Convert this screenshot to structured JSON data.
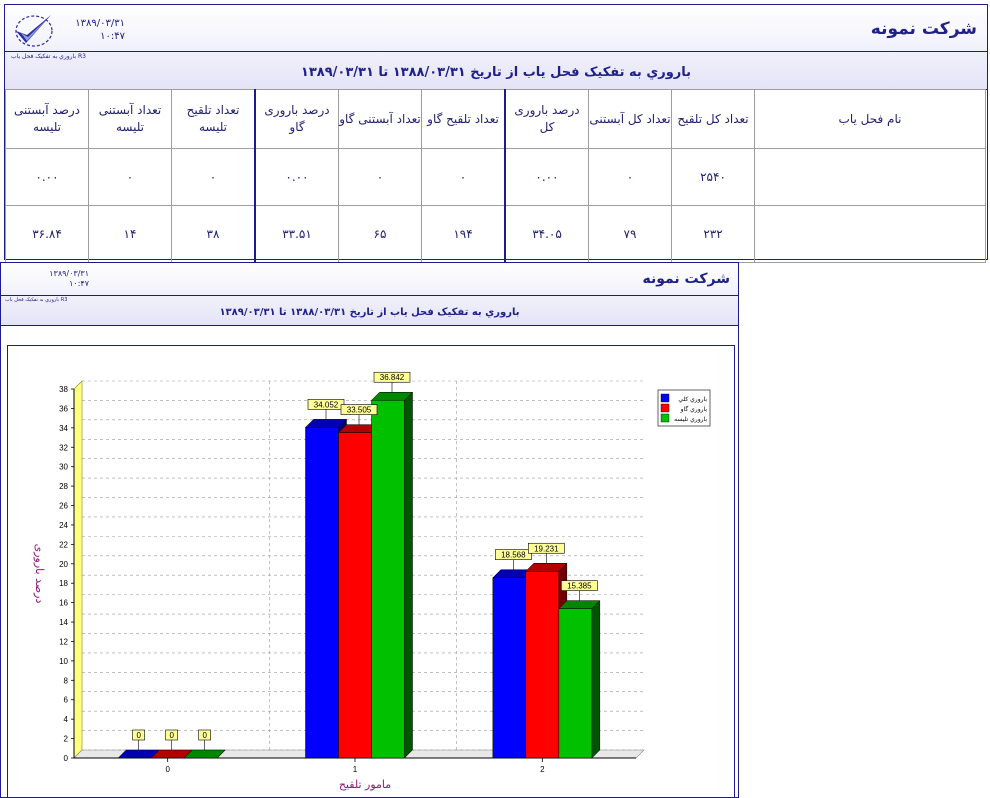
{
  "company": "شرکت نمونه",
  "report_date": "۱۳۸۹/۰۳/۳۱",
  "report_time": "۱۰:۴۷",
  "report_code": "باروري به تفکيک فحل ياب R3",
  "report_title": "باروري به تفکيک فحل ياب از تاريخ ۱۳۸۸/۰۳/۳۱ تا ۱۳۸۹/۰۳/۳۱",
  "table": {
    "columns": [
      "نام فحل یاب",
      "تعداد کل تلقیح",
      "تعداد کل آبستنی",
      "درصد باروری کل",
      "تعداد تلقیح گاو",
      "تعداد آبستنی گاو",
      "درصد باروری گاو",
      "تعداد تلقیح تلیسه",
      "تعداد آبستنی تلیسه",
      "درصد آبستنی تلیسه"
    ],
    "rows": [
      [
        "",
        "۲۵۴۰",
        "۰",
        "۰.۰۰",
        "۰",
        "۰",
        "۰.۰۰",
        "۰",
        "۰",
        "۰.۰۰"
      ],
      [
        "",
        "۲۳۲",
        "۷۹",
        "۳۴.۰۵",
        "۱۹۴",
        "۶۵",
        "۳۳.۵۱",
        "۳۸",
        "۱۴",
        "۳۶.۸۴"
      ]
    ]
  },
  "chart_header": {
    "company": "شرکت نمونه",
    "date": "۱۳۸۹/۰۳/۳۱",
    "time": "۱۰:۴۷",
    "code": "باروري به تفکيک فحل ياب R3",
    "title": "باروري به تفکيک فحل ياب از تاريخ ۱۳۸۸/۰۳/۳۱ تا ۱۳۸۹/۰۳/۳۱"
  },
  "chart_data": {
    "type": "bar",
    "categories": [
      "0",
      "1",
      "2"
    ],
    "series": [
      {
        "name": "باروري کلي",
        "values": [
          0,
          34.052,
          18.568
        ],
        "labels": [
          "0",
          "34.052",
          "18.568"
        ],
        "color": "#0000ff"
      },
      {
        "name": "باروري گاو",
        "values": [
          0,
          33.505,
          19.231
        ],
        "labels": [
          "0",
          "33.505",
          "19.231"
        ],
        "color": "#ff0000"
      },
      {
        "name": "باروري تليسه",
        "values": [
          0,
          36.842,
          15.385
        ],
        "labels": [
          "0",
          "36.842",
          "15.385"
        ],
        "color": "#00c000"
      }
    ],
    "xlabel": "مامور تلقیح",
    "ylabel": "درصد باروری",
    "ylim": [
      0,
      38
    ],
    "yticks": [
      0,
      2,
      4,
      6,
      8,
      10,
      12,
      14,
      16,
      18,
      20,
      22,
      24,
      26,
      28,
      30,
      32,
      34,
      36,
      38
    ],
    "grid": true,
    "legend_position": "top-right",
    "style": "3d"
  }
}
